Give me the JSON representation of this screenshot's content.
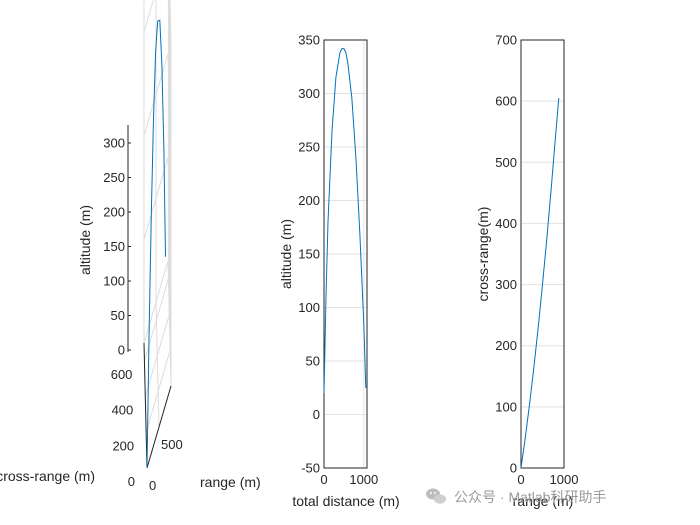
{
  "chart_data": [
    {
      "type": "line",
      "projection": "3d",
      "xlabel": "range (m)",
      "ylabel": "cross-range (m)",
      "zlabel": "altitude (m)",
      "zticks": [
        "0",
        "50",
        "100",
        "150",
        "200",
        "250",
        "300"
      ],
      "yticks": [
        "0",
        "200",
        "400",
        "600"
      ],
      "xticks": [
        "0",
        "500"
      ],
      "zlim": [
        0,
        330
      ],
      "ylim": [
        0,
        700
      ],
      "xlim": [
        0,
        1000
      ],
      "grid": true,
      "series": [
        {
          "color": "#0072bd",
          "x": [
            0,
            100,
            200,
            300,
            400,
            500,
            600,
            700,
            800,
            880
          ],
          "y": [
            0,
            50,
            105,
            165,
            230,
            300,
            375,
            455,
            540,
            605
          ],
          "z": [
            0,
            120,
            215,
            285,
            330,
            340,
            320,
            255,
            150,
            30
          ]
        }
      ]
    },
    {
      "type": "line",
      "xlabel": "total distance (m)",
      "ylabel": "altitude (m)",
      "xlim": [
        0,
        1080
      ],
      "ylim": [
        -50,
        350
      ],
      "xticks": [
        "0",
        "1000"
      ],
      "yticks": [
        "-50",
        "0",
        "50",
        "100",
        "150",
        "200",
        "250",
        "300",
        "350"
      ],
      "grid": true,
      "series": [
        {
          "color": "#0072bd",
          "x": [
            0,
            50,
            100,
            200,
            300,
            400,
            450,
            500,
            550,
            600,
            700,
            800,
            900,
            1000,
            1050
          ],
          "y": [
            20,
            110,
            180,
            265,
            315,
            338,
            342,
            342,
            338,
            328,
            295,
            240,
            170,
            85,
            25
          ]
        }
      ]
    },
    {
      "type": "line",
      "xlabel": "range (m)",
      "ylabel": "cross-range(m)",
      "xlim": [
        0,
        1000
      ],
      "ylim": [
        0,
        700
      ],
      "xticks": [
        "0",
        "1000"
      ],
      "yticks": [
        "0",
        "100",
        "200",
        "300",
        "400",
        "500",
        "600",
        "700"
      ],
      "grid": true,
      "series": [
        {
          "color": "#0072bd",
          "x": [
            0,
            100,
            200,
            300,
            400,
            500,
            600,
            700,
            800,
            880
          ],
          "y": [
            0,
            50,
            105,
            165,
            230,
            300,
            375,
            455,
            540,
            605
          ]
        }
      ]
    }
  ],
  "watermark": {
    "icon": "wechat-icon",
    "text": "公众号 · Matlab科研助手"
  }
}
